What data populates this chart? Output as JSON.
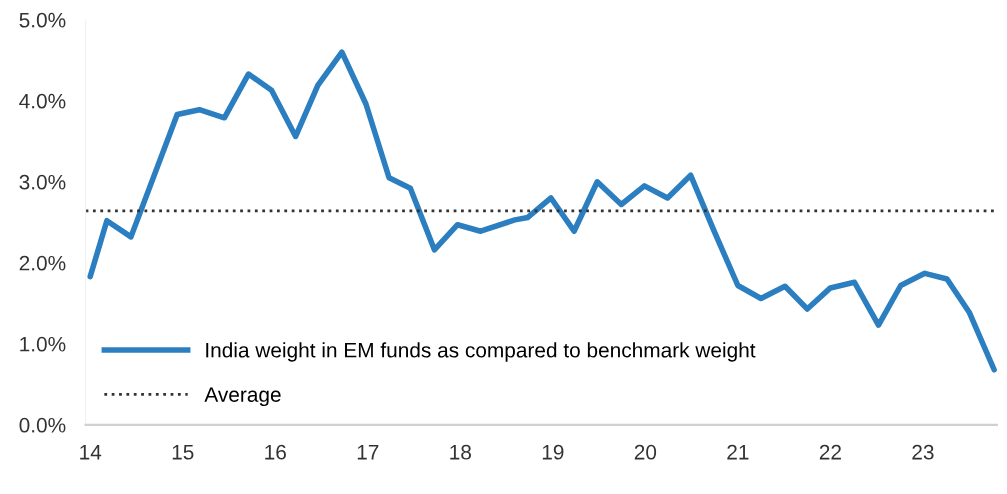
{
  "chart_data": {
    "type": "line",
    "x": [
      14.0,
      14.18,
      14.44,
      14.94,
      15.18,
      15.45,
      15.71,
      15.96,
      16.22,
      16.46,
      16.72,
      16.98,
      17.23,
      17.46,
      17.72,
      17.97,
      18.22,
      18.59,
      18.73,
      18.98,
      19.23,
      19.48,
      19.74,
      19.99,
      20.24,
      20.49,
      20.74,
      21.0,
      21.25,
      21.51,
      21.75,
      22.0,
      22.26,
      22.52,
      22.76,
      23.02,
      23.26,
      23.5,
      23.77
    ],
    "series": [
      {
        "name": "India weight in EM funds as compared to benchmark weight",
        "color": "#2b7fc0",
        "values": [
          1.83,
          2.52,
          2.32,
          3.83,
          3.89,
          3.79,
          4.33,
          4.13,
          3.56,
          4.19,
          4.6,
          3.96,
          3.05,
          2.92,
          2.16,
          2.47,
          2.39,
          2.53,
          2.56,
          2.8,
          2.39,
          3.0,
          2.72,
          2.95,
          2.8,
          3.08,
          2.4,
          1.72,
          1.56,
          1.71,
          1.43,
          1.69,
          1.76,
          1.23,
          1.72,
          1.87,
          1.8,
          1.39,
          0.68
        ]
      }
    ],
    "ref_lines": [
      {
        "axis": "y",
        "value": 2.64,
        "label": "Average",
        "color": "#333333",
        "line_style": "dotted"
      }
    ],
    "xlim": [
      13.95,
      23.8
    ],
    "xticks": [
      14,
      15,
      16,
      17,
      18,
      19,
      20,
      21,
      22,
      23
    ],
    "ylim": [
      0,
      5
    ],
    "yticks": [
      {
        "value": 0,
        "label": "0.0%"
      },
      {
        "value": 1,
        "label": "1.0%"
      },
      {
        "value": 2,
        "label": "2.0%"
      },
      {
        "value": 3,
        "label": "3.0%"
      },
      {
        "value": 4,
        "label": "4.0%"
      },
      {
        "value": 5,
        "label": "5.0%"
      }
    ],
    "grid": false,
    "legend": "bottom left",
    "line_style": "solid",
    "marker": "none"
  }
}
